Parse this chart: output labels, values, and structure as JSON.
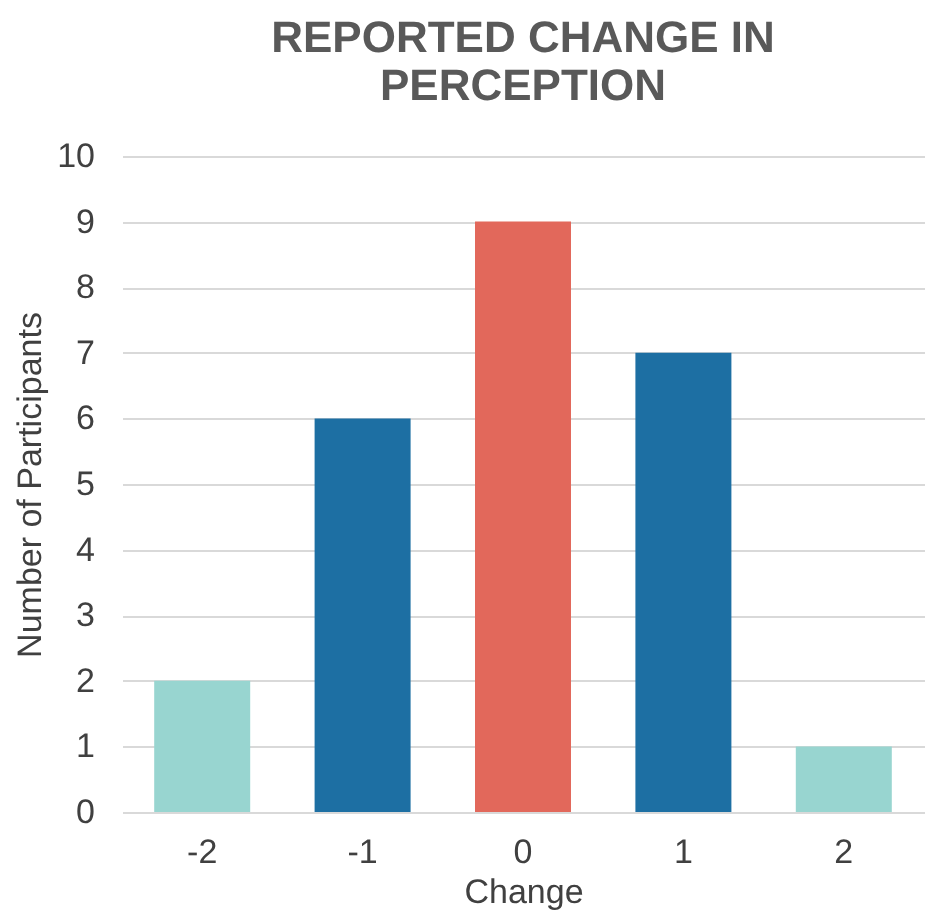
{
  "chart_data": {
    "type": "bar",
    "title": "REPORTED CHANGE IN PERCEPTION",
    "xlabel": "Change",
    "ylabel": "Number of Participants",
    "categories": [
      "-2",
      "-1",
      "0",
      "1",
      "2"
    ],
    "values": [
      2,
      6,
      9,
      7,
      1
    ],
    "colors": [
      "#98d5d0",
      "#1d6fa3",
      "#e2685b",
      "#1d6fa3",
      "#98d5d0"
    ],
    "ylim": [
      0,
      10
    ],
    "yticks": [
      0,
      1,
      2,
      3,
      4,
      5,
      6,
      7,
      8,
      9,
      10
    ],
    "grid": "y"
  }
}
